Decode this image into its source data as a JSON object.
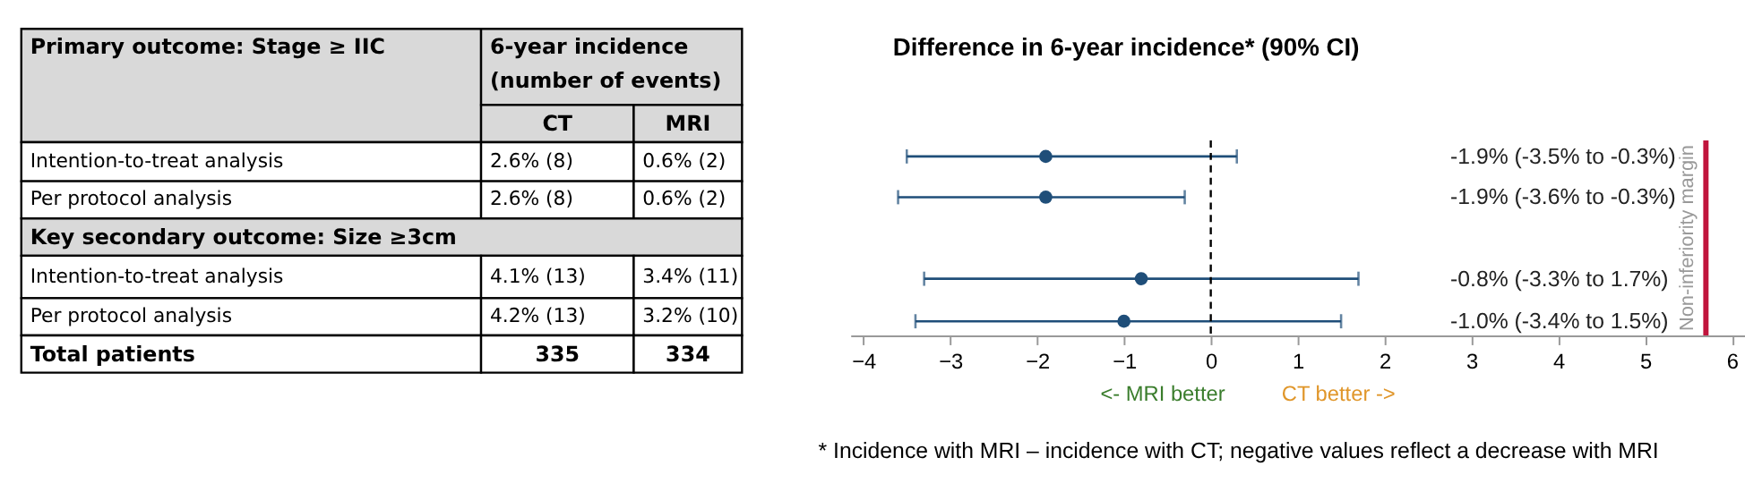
{
  "chart_data": [
    {
      "type": "other",
      "annotations": [
        "Primary outcome: Stage ≥ IIC",
        "6-year incidence (number of events)",
        "CT",
        "MRI",
        "Intention-to-treat analysis",
        "2.6% (8)",
        "0.6% (2)",
        "Per protocol analysis",
        "2.6% (8)",
        "0.6% (2)",
        "Key secondary outcome: Size ≥3cm",
        "Intention-to-treat analysis",
        "4.1% (13)",
        "3.4% (11)",
        "Per protocol analysis",
        "4.2% (13)",
        "3.2% (10)",
        "Total patients",
        "335",
        "334"
      ]
    },
    {
      "type": "scatter",
      "orientation": "horizontal",
      "title": "Difference in 6-year incidence* (90% CI)",
      "categories": [
        null,
        null,
        null,
        null
      ],
      "values": [
        -1.9,
        -1.9,
        -0.8,
        -1.0
      ],
      "errors": [
        [
          -3.5,
          0.3
        ],
        [
          -3.6,
          -0.3
        ],
        [
          -3.3,
          1.7
        ],
        [
          -3.4,
          1.5
        ]
      ],
      "color": "#1f4e79",
      "marker": "circle",
      "xlim": [
        -4.15,
        6.15
      ],
      "xticks": [
        -4,
        -3,
        -2,
        -1,
        0,
        1,
        2,
        3,
        4,
        5,
        6
      ],
      "tick_labels": "x",
      "ref_lines": [
        {
          "axis": "x",
          "value": 0,
          "color": "#000000",
          "line_style": "dashed"
        },
        {
          "axis": "x",
          "value": 5.7,
          "label": "Non-inferiority margin",
          "color": "#c0143c",
          "line_style": "solid"
        }
      ],
      "annotations": [
        "<- MRI better",
        "CT better ->",
        "* Incidence with MRI – incidence with CT; negative values reflect a decrease with MRI",
        "-1.9% (-3.5% to -0.3%)",
        "-1.9% (-3.6% to -0.3%)",
        "-0.8% (-3.3% to 1.7%)",
        "-1.0% (-3.4% to 1.5%)"
      ]
    }
  ]
}
